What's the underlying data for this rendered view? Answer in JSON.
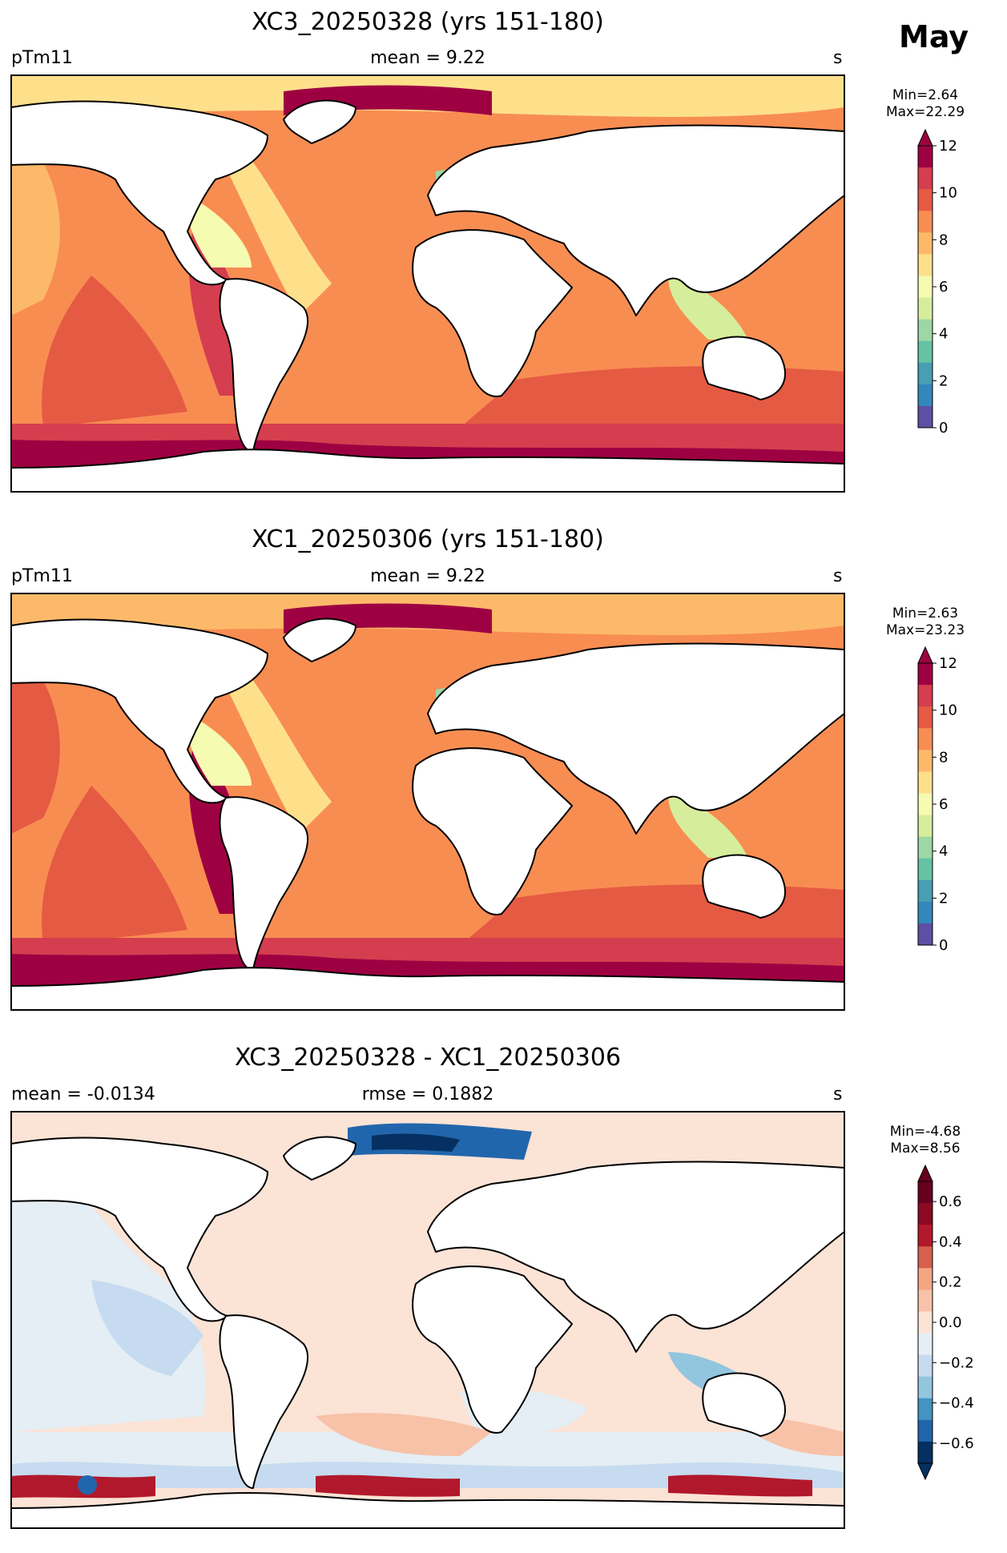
{
  "month": "May",
  "panels": [
    {
      "title": "XC3_20250328 (yrs 151-180)",
      "left_label": "pTm11",
      "center_label": "mean = 9.22",
      "right_label": "s",
      "stats_min": "Min=2.64",
      "stats_max": "Max=22.29",
      "colorbar": {
        "ticks": [
          "0",
          "2",
          "4",
          "6",
          "8",
          "10",
          "12"
        ],
        "colors": [
          "#5e4fa2",
          "#3288bd",
          "#479fb3",
          "#66c2a5",
          "#9dd7a4",
          "#d6ee9b",
          "#f5fbb0",
          "#fee08b",
          "#fdb96a",
          "#f88d52",
          "#e55a43",
          "#d53e4f",
          "#9e0142"
        ]
      }
    },
    {
      "title": "XC1_20250306 (yrs 151-180)",
      "left_label": "pTm11",
      "center_label": "mean = 9.22",
      "right_label": "s",
      "stats_min": "Min=2.63",
      "stats_max": "Max=23.23",
      "colorbar": {
        "ticks": [
          "0",
          "2",
          "4",
          "6",
          "8",
          "10",
          "12"
        ],
        "colors": [
          "#5e4fa2",
          "#3288bd",
          "#479fb3",
          "#66c2a5",
          "#9dd7a4",
          "#d6ee9b",
          "#f5fbb0",
          "#fee08b",
          "#fdb96a",
          "#f88d52",
          "#e55a43",
          "#d53e4f",
          "#9e0142"
        ]
      }
    },
    {
      "title": "XC3_20250328 - XC1_20250306",
      "left_label": "mean = -0.0134",
      "center_label": "rmse = 0.1882",
      "right_label": "s",
      "stats_min": "Min=-4.68",
      "stats_max": "Max=8.56",
      "colorbar": {
        "ticks": [
          "0.6",
          "0.4",
          "0.2",
          "0.0",
          "−0.2",
          "−0.4",
          "−0.6"
        ],
        "colors": [
          "#053061",
          "#2166ac",
          "#4393c3",
          "#92c5de",
          "#c6dbef",
          "#e4eef4",
          "#fbe3d6",
          "#f7c2a8",
          "#f4a582",
          "#d6604d",
          "#b2182b",
          "#8b0a22",
          "#67001f"
        ]
      }
    }
  ]
}
